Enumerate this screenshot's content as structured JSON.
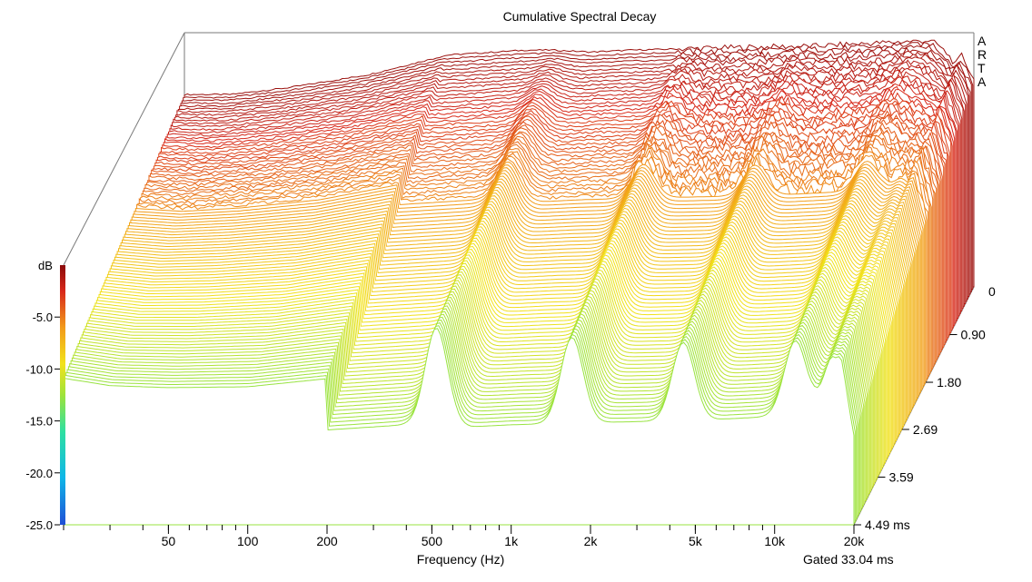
{
  "chart_data": {
    "type": "waterfall",
    "title": "Cumulative Spectral Decay",
    "brand": "ARTA",
    "xlabel": "Frequency (Hz)",
    "x_scale": "log",
    "xlim": [
      20,
      20000
    ],
    "x_ticks": [
      {
        "value": 50,
        "label": "50"
      },
      {
        "value": 100,
        "label": "100"
      },
      {
        "value": 200,
        "label": "200"
      },
      {
        "value": 500,
        "label": "500"
      },
      {
        "value": 1000,
        "label": "1k"
      },
      {
        "value": 2000,
        "label": "2k"
      },
      {
        "value": 5000,
        "label": "5k"
      },
      {
        "value": 10000,
        "label": "10k"
      },
      {
        "value": 20000,
        "label": "20k"
      }
    ],
    "zlabel": "dB",
    "zlim": [
      -25,
      0
    ],
    "z_ticks": [
      {
        "value": -5,
        "label": "-5.0"
      },
      {
        "value": -10,
        "label": "-10.0"
      },
      {
        "value": -15,
        "label": "-15.0"
      },
      {
        "value": -20,
        "label": "-20.0"
      },
      {
        "value": -25,
        "label": "-25.0"
      }
    ],
    "top_level_label": "0",
    "time_unit": "ms",
    "time_range": [
      0,
      4.49
    ],
    "time_ticks": [
      {
        "value": 0.9,
        "label": "0.90"
      },
      {
        "value": 1.8,
        "label": "1.80"
      },
      {
        "value": 2.69,
        "label": "2.69"
      },
      {
        "value": 3.59,
        "label": "3.59"
      },
      {
        "value": 4.49,
        "label": "4.49 ms"
      }
    ],
    "gate_label": "Gated 33.04 ms",
    "slice_count": 100,
    "initial_response": {
      "frequency_hz": [
        20,
        30,
        50,
        100,
        200,
        400,
        500,
        700,
        1000,
        2000,
        3000,
        5000,
        7000,
        10000,
        14000,
        16000,
        17000,
        18000,
        20000
      ],
      "level_db": [
        -5.5,
        -5.5,
        -4.8,
        -3.5,
        -1.5,
        -1.0,
        -1.0,
        -1.2,
        -1.0,
        -0.8,
        -0.7,
        -0.6,
        -0.4,
        -0.2,
        0,
        -1.5,
        -2.5,
        -1.5,
        -4.0
      ]
    },
    "colormap": [
      "#1f4fd6",
      "#0fb6e8",
      "#2fe0a0",
      "#9fe33a",
      "#f2e21a",
      "#f29a1a",
      "#d8281a",
      "#8a0a0a"
    ]
  }
}
